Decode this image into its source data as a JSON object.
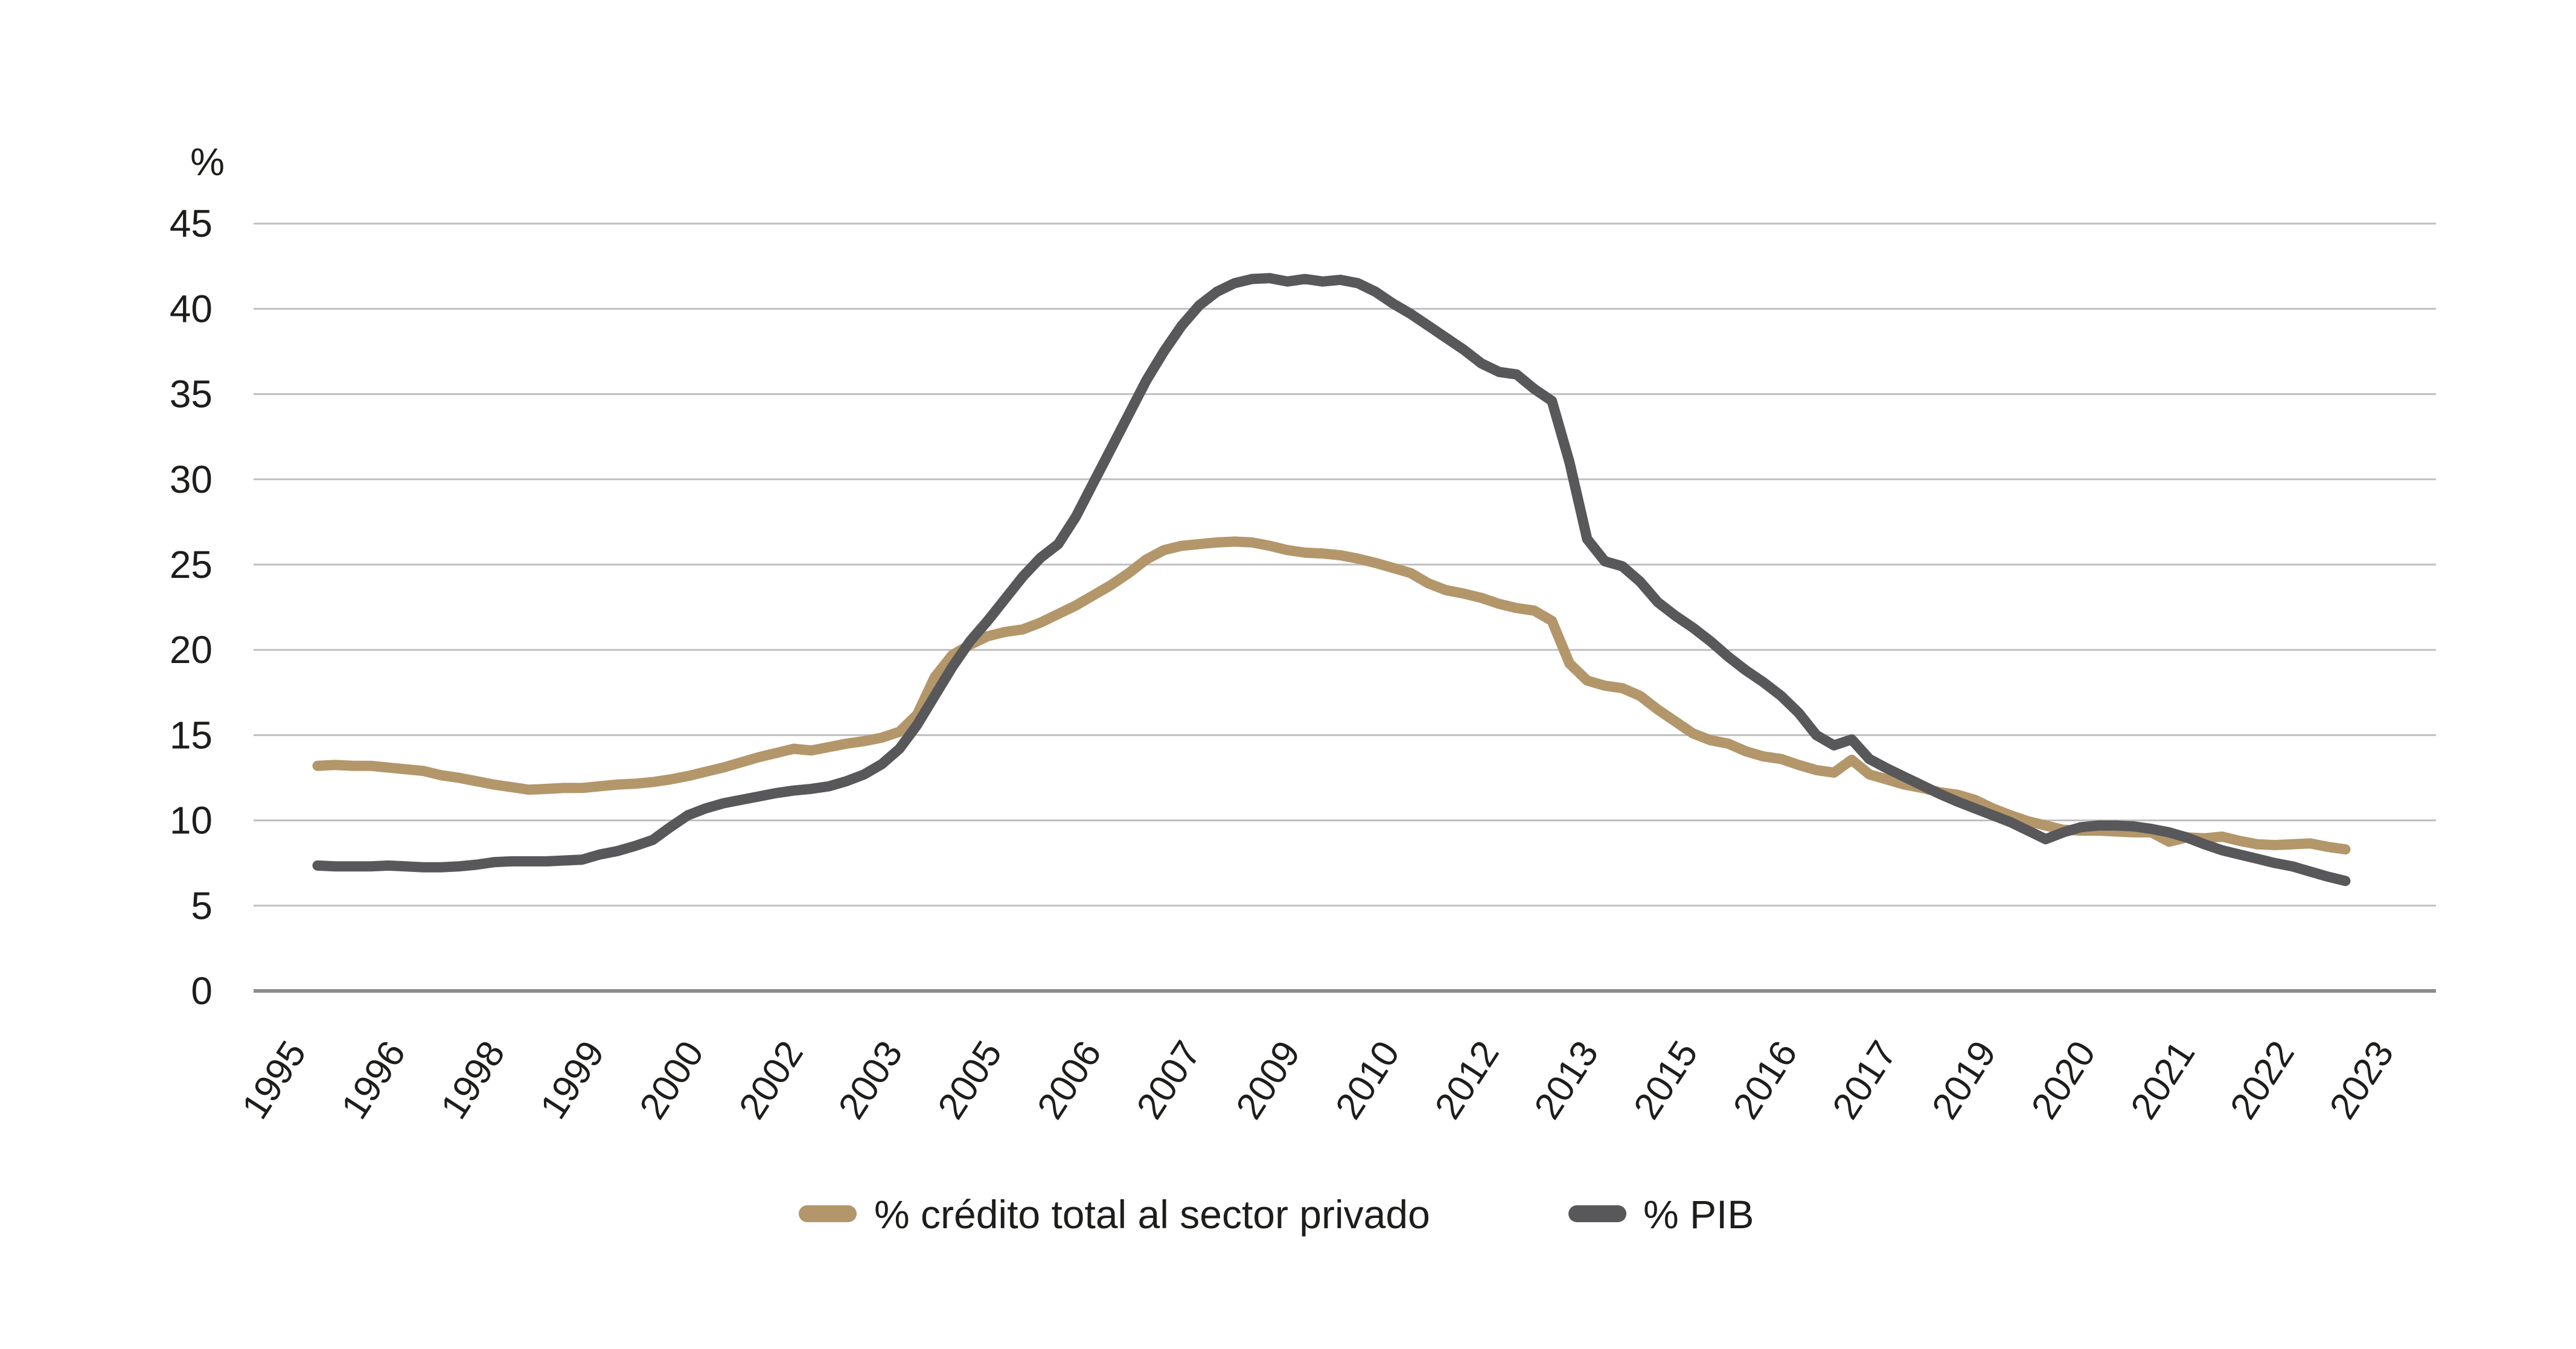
{
  "chart_data": {
    "type": "line",
    "title": "",
    "ylabel": "%",
    "xlabel": "",
    "grid": "horizontal",
    "legend_position": "bottom-center",
    "ylim": [
      0,
      45
    ],
    "y_ticks": [
      0,
      5,
      10,
      15,
      20,
      25,
      30,
      35,
      40,
      45
    ],
    "x_tick_labels": [
      "1995",
      "1996",
      "1998",
      "1999",
      "2000",
      "2002",
      "2003",
      "2005",
      "2006",
      "2007",
      "2009",
      "2010",
      "2012",
      "2013",
      "2015",
      "2016",
      "2017",
      "2019",
      "2020",
      "2021",
      "2022",
      "2023"
    ],
    "series": [
      {
        "name": "% crédito total al sector privado",
        "color": "#b3976a",
        "values": [
          13.2,
          13.25,
          13.2,
          13.2,
          13.1,
          13.0,
          12.9,
          12.65,
          12.5,
          12.3,
          12.1,
          11.95,
          11.8,
          11.85,
          11.9,
          11.9,
          12.0,
          12.1,
          12.15,
          12.25,
          12.4,
          12.6,
          12.85,
          13.1,
          13.4,
          13.7,
          13.95,
          14.2,
          14.1,
          14.3,
          14.5,
          14.65,
          14.85,
          15.2,
          16.2,
          18.4,
          19.7,
          20.3,
          20.8,
          21.05,
          21.2,
          21.6,
          22.1,
          22.6,
          23.2,
          23.8,
          24.5,
          25.3,
          25.85,
          26.1,
          26.2,
          26.3,
          26.35,
          26.3,
          26.1,
          25.85,
          25.7,
          25.65,
          25.55,
          25.35,
          25.1,
          24.8,
          24.5,
          23.9,
          23.5,
          23.3,
          23.05,
          22.7,
          22.45,
          22.3,
          21.7,
          19.2,
          18.2,
          17.9,
          17.75,
          17.3,
          16.5,
          15.8,
          15.1,
          14.7,
          14.5,
          14.05,
          13.75,
          13.6,
          13.25,
          12.95,
          12.8,
          13.55,
          12.7,
          12.4,
          12.1,
          11.9,
          11.65,
          11.5,
          11.2,
          10.7,
          10.3,
          9.95,
          9.7,
          9.45,
          9.4,
          9.4,
          9.35,
          9.3,
          9.3,
          8.75,
          9.0,
          8.95,
          9.05,
          8.8,
          8.6,
          8.55,
          8.6,
          8.65,
          8.45,
          8.3
        ]
      },
      {
        "name": "% PIB",
        "color": "#58585a",
        "values": [
          7.35,
          7.3,
          7.3,
          7.3,
          7.35,
          7.3,
          7.25,
          7.25,
          7.3,
          7.4,
          7.55,
          7.6,
          7.6,
          7.6,
          7.65,
          7.7,
          8.0,
          8.2,
          8.5,
          8.85,
          9.6,
          10.3,
          10.7,
          11.0,
          11.2,
          11.4,
          11.6,
          11.75,
          11.85,
          12.0,
          12.3,
          12.7,
          13.3,
          14.2,
          15.6,
          17.3,
          19.0,
          20.5,
          21.7,
          23.0,
          24.3,
          25.4,
          26.2,
          27.8,
          29.8,
          31.8,
          33.8,
          35.8,
          37.5,
          39.0,
          40.2,
          41.0,
          41.5,
          41.75,
          41.8,
          41.6,
          41.75,
          41.6,
          41.7,
          41.5,
          41.0,
          40.3,
          39.7,
          39.0,
          38.3,
          37.6,
          36.8,
          36.3,
          36.15,
          35.3,
          34.6,
          31.0,
          26.5,
          25.2,
          24.9,
          24.0,
          22.8,
          22.0,
          21.3,
          20.5,
          19.6,
          18.8,
          18.1,
          17.3,
          16.3,
          15.0,
          14.4,
          14.75,
          13.6,
          13.05,
          12.55,
          12.05,
          11.55,
          11.1,
          10.7,
          10.3,
          9.9,
          9.4,
          8.9,
          9.3,
          9.6,
          9.7,
          9.7,
          9.65,
          9.5,
          9.3,
          9.0,
          8.6,
          8.25,
          8.0,
          7.75,
          7.5,
          7.3,
          7.0,
          6.7,
          6.45
        ]
      }
    ]
  },
  "colors": {
    "background": "#ffffff",
    "gridline": "#bfbfbf",
    "axis_line": "#8c8c8c",
    "text": "#1d1d1b",
    "series_credito": "#b3976a",
    "series_pib": "#58585a"
  }
}
